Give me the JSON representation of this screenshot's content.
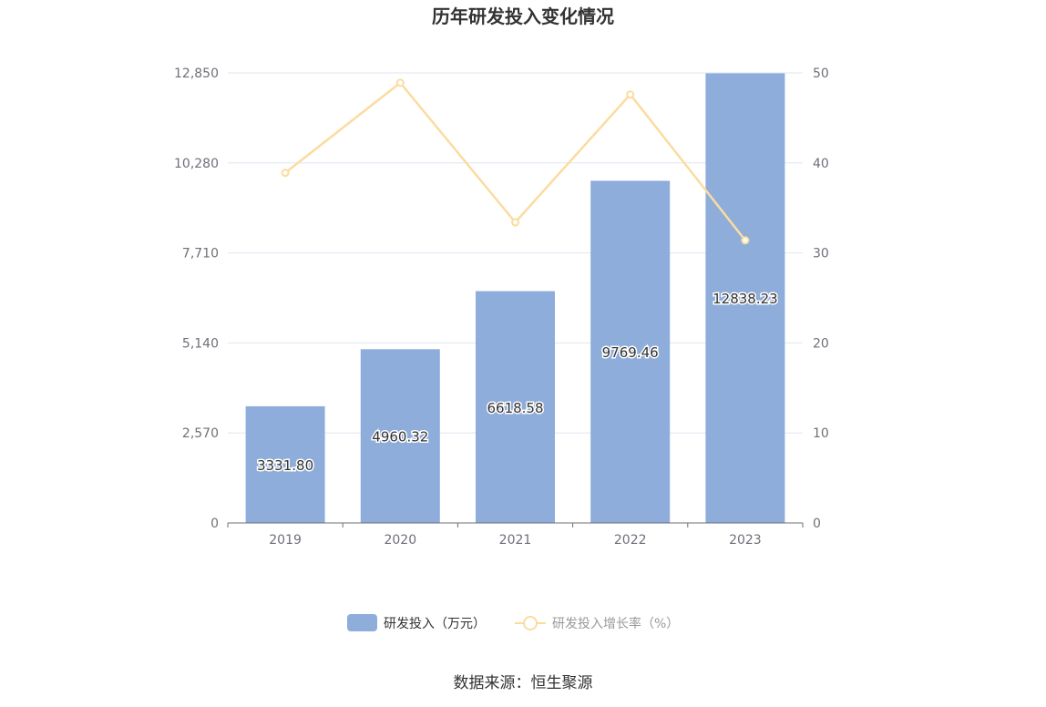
{
  "chart_data": {
    "type": "bar",
    "title": "历年研发投入变化情况",
    "categories": [
      "2019",
      "2020",
      "2021",
      "2022",
      "2023"
    ],
    "series": [
      {
        "name": "研发投入（万元）",
        "type": "bar",
        "axis": "left",
        "color": "#8eaddb",
        "values": [
          3331.8,
          4960.32,
          6618.58,
          9769.46,
          12838.23
        ],
        "labels": [
          "3331.80",
          "4960.32",
          "6618.58",
          "9769.46",
          "12838.23"
        ]
      },
      {
        "name": "研发投入增长率（%）",
        "type": "line",
        "axis": "right",
        "color": "#fbdc9f",
        "values": [
          38.9,
          48.9,
          33.4,
          47.6,
          31.4
        ]
      }
    ],
    "y_left": {
      "min": 0,
      "max": 12850,
      "ticks": [
        0,
        2570,
        5140,
        7710,
        10280,
        12850
      ],
      "tick_labels": [
        "0",
        "2,570",
        "5,140",
        "7,710",
        "10,280",
        "12,850"
      ]
    },
    "y_right": {
      "min": 0,
      "max": 50,
      "ticks": [
        0,
        10,
        20,
        30,
        40,
        50
      ],
      "tick_labels": [
        "0",
        "10",
        "20",
        "30",
        "40",
        "50"
      ]
    },
    "grid": true,
    "legend_position": "bottom-center"
  },
  "source": "数据来源：恒生聚源"
}
